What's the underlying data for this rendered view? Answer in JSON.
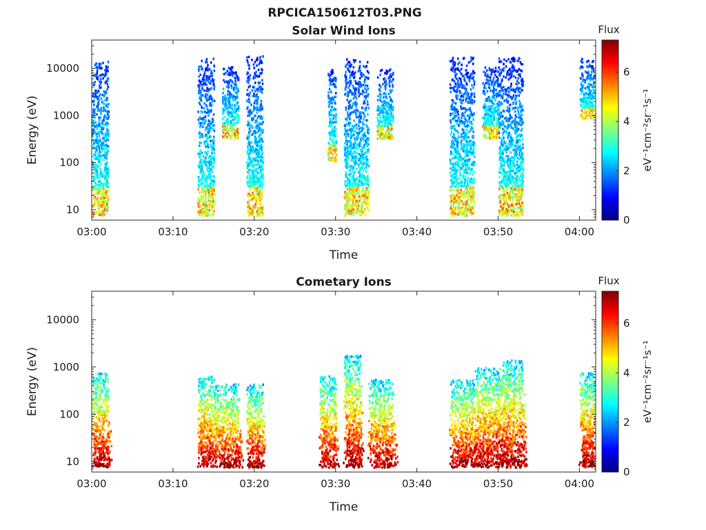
{
  "figure_title": "RPCICA150612T03.PNG",
  "colormap": [
    "#00007f",
    "#0000ff",
    "#007fff",
    "#00ffff",
    "#7fff7f",
    "#ffff00",
    "#ff7f00",
    "#ff0000",
    "#7f0000"
  ],
  "chart_data": [
    {
      "type": "heatmap",
      "title": "Solar Wind Ions",
      "xlabel": "Time",
      "ylabel": "Energy (eV)",
      "xlim": [
        "03:00",
        "04:02"
      ],
      "x_ticks": [
        "03:00",
        "03:10",
        "03:20",
        "03:30",
        "03:40",
        "03:50",
        "04:00"
      ],
      "yscale": "log",
      "ylim": [
        6,
        40000
      ],
      "y_ticks": [
        "10",
        "100",
        "1000",
        "10000"
      ],
      "colorbar": {
        "label": "Flux",
        "units": "eV⁻¹cm⁻²sr⁻¹s⁻¹",
        "range": [
          0,
          7.3
        ],
        "ticks": [
          "0",
          "2",
          "4",
          "6"
        ]
      },
      "bursts": [
        {
          "start": "03:00",
          "end": "03:02",
          "e_low": 7,
          "e_high": 14000
        },
        {
          "start": "03:13",
          "end": "03:15",
          "e_low": 7,
          "e_high": 15000
        },
        {
          "start": "03:16",
          "end": "03:18",
          "e_low": 300,
          "e_high": 10000
        },
        {
          "start": "03:19",
          "end": "03:21",
          "e_low": 7,
          "e_high": 17000
        },
        {
          "start": "03:29",
          "end": "03:30",
          "e_low": 100,
          "e_high": 9000
        },
        {
          "start": "03:31",
          "end": "03:34",
          "e_low": 7,
          "e_high": 15000
        },
        {
          "start": "03:35",
          "end": "03:37",
          "e_low": 300,
          "e_high": 9000
        },
        {
          "start": "03:44",
          "end": "03:47",
          "e_low": 7,
          "e_high": 16000
        },
        {
          "start": "03:48",
          "end": "03:50",
          "e_low": 300,
          "e_high": 10000
        },
        {
          "start": "03:50",
          "end": "03:53",
          "e_low": 7,
          "e_high": 16000
        },
        {
          "start": "04:00",
          "end": "04:02",
          "e_low": 800,
          "e_high": 15000
        }
      ]
    },
    {
      "type": "heatmap",
      "title": "Cometary Ions",
      "xlabel": "Time",
      "ylabel": "Energy (eV)",
      "xlim": [
        "03:00",
        "04:02"
      ],
      "x_ticks": [
        "03:00",
        "03:10",
        "03:20",
        "03:30",
        "03:40",
        "03:50",
        "04:00"
      ],
      "yscale": "log",
      "ylim": [
        6,
        40000
      ],
      "y_ticks": [
        "10",
        "100",
        "1000",
        "10000"
      ],
      "colorbar": {
        "label": "Flux",
        "units": "eV⁻¹cm⁻²sr⁻¹s⁻¹",
        "range": [
          0,
          7.3
        ],
        "ticks": [
          "0",
          "2",
          "4",
          "6"
        ]
      },
      "bursts": [
        {
          "start": "03:00",
          "end": "03:02",
          "e_low": 7,
          "e_high": 700
        },
        {
          "start": "03:13",
          "end": "03:15",
          "e_low": 7,
          "e_high": 600
        },
        {
          "start": "03:15",
          "end": "03:18",
          "e_low": 7,
          "e_high": 400
        },
        {
          "start": "03:19",
          "end": "03:21",
          "e_low": 7,
          "e_high": 400
        },
        {
          "start": "03:28",
          "end": "03:30",
          "e_low": 7,
          "e_high": 600
        },
        {
          "start": "03:31",
          "end": "03:33",
          "e_low": 7,
          "e_high": 1700
        },
        {
          "start": "03:34",
          "end": "03:37",
          "e_low": 7,
          "e_high": 500
        },
        {
          "start": "03:44",
          "end": "03:47",
          "e_low": 7,
          "e_high": 500
        },
        {
          "start": "03:47",
          "end": "03:50",
          "e_low": 7,
          "e_high": 900
        },
        {
          "start": "03:50",
          "end": "03:53",
          "e_low": 7,
          "e_high": 1300
        },
        {
          "start": "04:00",
          "end": "04:02",
          "e_low": 7,
          "e_high": 700
        }
      ]
    }
  ]
}
